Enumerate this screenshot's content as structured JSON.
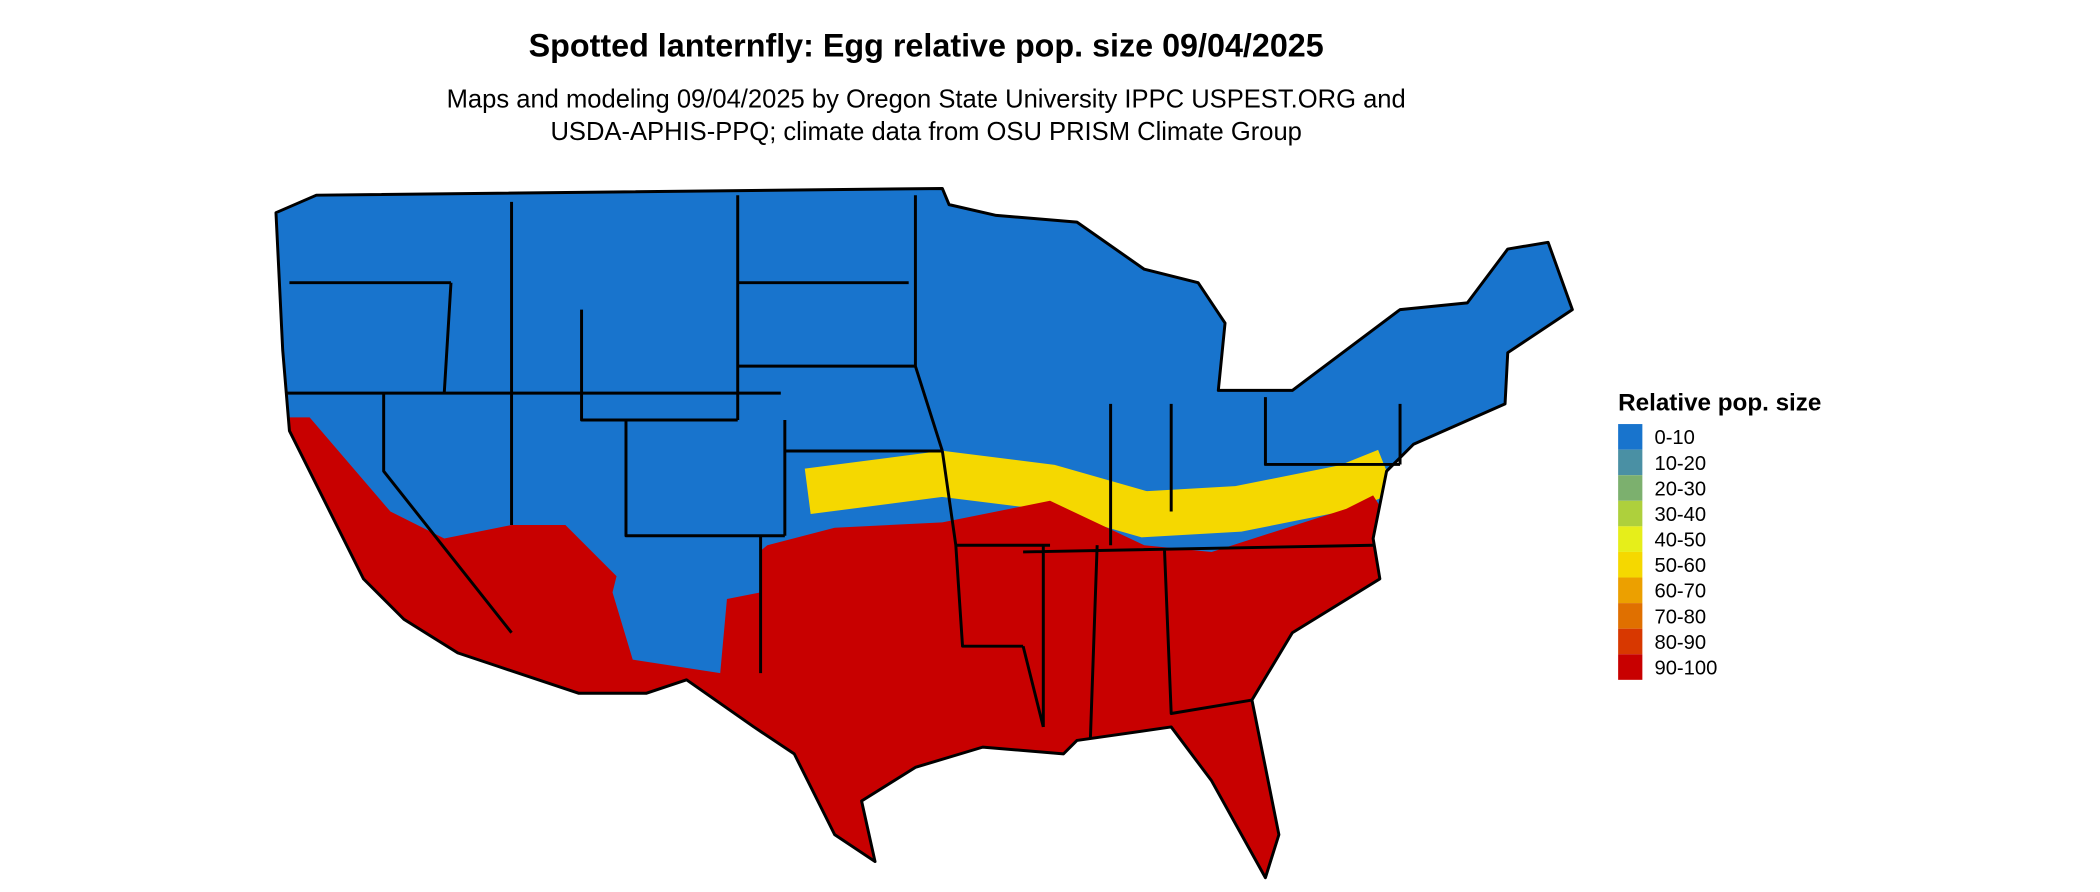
{
  "title": "Spotted lanternfly: Egg relative pop. size 09/04/2025",
  "subtitle": [
    "Maps and modeling 09/04/2025 by Oregon State University IPPC USPEST.ORG and",
    "USDA-APHIS-PPQ; climate data from OSU PRISM Climate Group"
  ],
  "legend": {
    "title": "Relative pop. size",
    "items": [
      {
        "label": "0-10",
        "color": "#1874cd"
      },
      {
        "label": "10-20",
        "color": "#4a90a4"
      },
      {
        "label": "20-30",
        "color": "#7cb06e"
      },
      {
        "label": "30-40",
        "color": "#aed03c"
      },
      {
        "label": "40-50",
        "color": "#e6ee1a"
      },
      {
        "label": "50-60",
        "color": "#f5d800"
      },
      {
        "label": "60-70",
        "color": "#eca000"
      },
      {
        "label": "70-80",
        "color": "#e07000"
      },
      {
        "label": "80-90",
        "color": "#d83800"
      },
      {
        "label": "90-100",
        "color": "#c80000"
      }
    ]
  }
}
